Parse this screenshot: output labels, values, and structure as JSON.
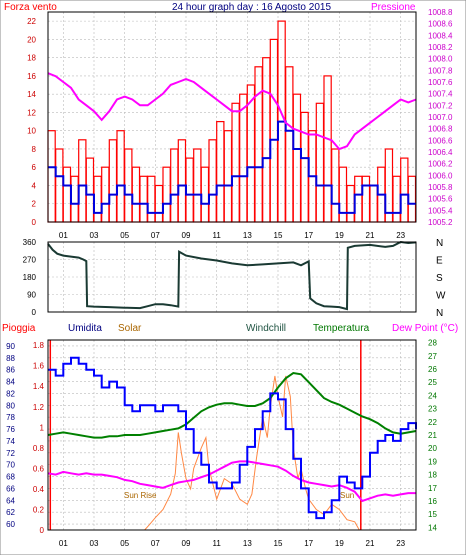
{
  "title": "24 hour graph day : 16 Agosto 2015",
  "colors": {
    "wind": "#ff0000",
    "gust": "#0000dd",
    "pressure": "#ff00ff",
    "direction": "#1a3a33",
    "humidity": "#0000ff",
    "solar": "#ff8844",
    "temperature": "#008000",
    "dewpoint": "#ff00ff",
    "rain": "#ff0000",
    "grid": "#bbbbbb",
    "text_blue": "#000080",
    "text_orange": "#aa6600",
    "text_green": "#007700",
    "text_dark": "#225544"
  },
  "chart_data": [
    {
      "type": "line",
      "name": "wind-pressure",
      "left_label": "Forza vento",
      "right_label": "Pressione",
      "x_ticks": [
        "01",
        "03",
        "05",
        "07",
        "09",
        "11",
        "13",
        "15",
        "17",
        "19",
        "21",
        "23"
      ],
      "y_left_ticks": [
        0,
        2,
        4,
        6,
        8,
        10,
        12,
        14,
        16,
        18,
        20,
        22
      ],
      "y_right_ticks": [
        1005.2,
        1005.4,
        1005.6,
        1005.8,
        1006,
        1006.2,
        1006.4,
        1006.6,
        1006.8,
        1007,
        1007.2,
        1007.4,
        1007.6,
        1007.8,
        1008,
        1008.2,
        1008.4,
        1008.6,
        1008.8
      ],
      "ylim_left": [
        0,
        23
      ],
      "ylim_right": [
        1005.2,
        1008.8
      ],
      "xlim": [
        0,
        24
      ],
      "series": [
        {
          "key": "wind",
          "x": [
            0,
            0.5,
            1,
            1.5,
            2,
            2.5,
            3,
            3.5,
            4,
            4.5,
            5,
            5.5,
            6,
            6.5,
            7,
            7.5,
            8,
            8.5,
            9,
            9.5,
            10,
            10.5,
            11,
            11.5,
            12,
            12.5,
            13,
            13.5,
            14,
            14.5,
            15,
            15.5,
            16,
            16.5,
            17,
            17.5,
            18,
            18.5,
            19,
            19.5,
            20,
            20.5,
            21,
            21.5,
            22,
            22.5,
            23,
            23.5,
            24
          ],
          "values": [
            10,
            8,
            6,
            5,
            9,
            7,
            5,
            6,
            9,
            10,
            8,
            6,
            5,
            5,
            4,
            6,
            8,
            9,
            7,
            8,
            6,
            9,
            11,
            10,
            13,
            14,
            15,
            17,
            18,
            20,
            22,
            17,
            14,
            12,
            10,
            13,
            16,
            8,
            6,
            4,
            5,
            5,
            4,
            6,
            8,
            5,
            7,
            5,
            6
          ]
        },
        {
          "key": "gust",
          "x": [
            0,
            0.5,
            1,
            1.5,
            2,
            2.5,
            3,
            3.5,
            4,
            4.5,
            5,
            5.5,
            6,
            6.5,
            7,
            7.5,
            8,
            8.5,
            9,
            9.5,
            10,
            10.5,
            11,
            11.5,
            12,
            12.5,
            13,
            13.5,
            14,
            14.5,
            15,
            15.5,
            16,
            16.5,
            17,
            17.5,
            18,
            18.5,
            19,
            19.5,
            20,
            20.5,
            21,
            21.5,
            22,
            22.5,
            23,
            23.5,
            24
          ],
          "values": [
            6,
            5,
            4,
            2,
            4,
            3,
            1,
            2,
            3,
            4,
            3,
            2,
            2,
            1,
            1,
            2,
            3,
            4,
            3,
            3,
            2,
            3,
            4,
            4,
            5,
            5,
            6,
            6,
            7,
            9,
            11,
            10,
            8,
            7,
            5,
            4,
            4,
            2,
            1,
            1,
            3,
            4,
            4,
            3,
            1,
            1,
            3,
            2,
            2
          ]
        },
        {
          "key": "pressure",
          "x": [
            0,
            0.5,
            1,
            1.5,
            2,
            2.5,
            3,
            3.5,
            4,
            4.5,
            5,
            5.5,
            6,
            6.5,
            7,
            7.5,
            8,
            8.5,
            9,
            9.5,
            10,
            10.5,
            11,
            11.5,
            12,
            12.5,
            13,
            13.5,
            14,
            14.5,
            15,
            15.5,
            16,
            16.5,
            17,
            17.5,
            18,
            18.5,
            19,
            19.5,
            20,
            20.5,
            21,
            21.5,
            22,
            22.5,
            23,
            23.5,
            24
          ],
          "values": [
            1007.75,
            1007.7,
            1007.6,
            1007.5,
            1007.3,
            1007.2,
            1007.1,
            1006.95,
            1007.1,
            1007.3,
            1007.35,
            1007.3,
            1007.2,
            1007.2,
            1007.3,
            1007.4,
            1007.55,
            1007.6,
            1007.65,
            1007.6,
            1007.5,
            1007.4,
            1007.3,
            1007.2,
            1007.1,
            1007.1,
            1007.2,
            1007.35,
            1007.45,
            1007.4,
            1007.2,
            1006.9,
            1006.8,
            1006.75,
            1006.7,
            1006.7,
            1006.65,
            1006.6,
            1006.45,
            1006.5,
            1006.7,
            1006.8,
            1006.9,
            1007.0,
            1007.1,
            1007.2,
            1007.3,
            1007.25,
            1007.3
          ]
        }
      ]
    },
    {
      "type": "line",
      "name": "wind-direction",
      "y_ticks": [
        0,
        90,
        180,
        270,
        360
      ],
      "dir_labels": [
        "N",
        "W",
        "S",
        "E",
        "N"
      ],
      "ylim": [
        0,
        360
      ],
      "xlim": [
        0,
        24
      ],
      "series": [
        {
          "key": "direction",
          "x": [
            0,
            0.3,
            0.6,
            1,
            1.5,
            2,
            2.3,
            2.5,
            2.55,
            3,
            4,
            5,
            6,
            6.5,
            7,
            7.5,
            8,
            8.5,
            8.55,
            9,
            10,
            11,
            12,
            13,
            14,
            15,
            16,
            16.5,
            17,
            17.1,
            17.5,
            18,
            18.5,
            19,
            19.5,
            19.55,
            20,
            21,
            22,
            22.5,
            23,
            23.5,
            24
          ],
          "values": [
            350,
            320,
            300,
            290,
            285,
            280,
            270,
            262,
            30,
            28,
            25,
            22,
            20,
            30,
            40,
            40,
            35,
            28,
            310,
            290,
            275,
            265,
            250,
            240,
            245,
            250,
            255,
            240,
            260,
            70,
            45,
            30,
            28,
            25,
            15,
            330,
            340,
            345,
            335,
            340,
            360,
            355,
            358
          ]
        }
      ]
    },
    {
      "type": "line",
      "name": "humidity-temp",
      "labels": {
        "rain": "Pioggia",
        "humidity": "Umidita",
        "solar": "Solar",
        "windchill": "Windchill",
        "temperature": "Temperatura",
        "dewpoint": "Dew Point (°C)"
      },
      "annotations": [
        "Sun Rise",
        "Sun"
      ],
      "y_left_ticks": [
        60,
        62,
        64,
        66,
        68,
        70,
        72,
        74,
        76,
        78,
        80,
        82,
        84,
        86,
        88,
        90
      ],
      "ylim_left": [
        59,
        91
      ],
      "y_rain_ticks": [
        0,
        0.2,
        0.4,
        0.6,
        0.8,
        1,
        1.2,
        1.4,
        1.6,
        1.8
      ],
      "ylim_rain": [
        0,
        1.85
      ],
      "y_right_ticks": [
        14,
        15,
        16,
        17,
        18,
        19,
        20,
        21,
        22,
        23,
        24,
        25,
        26,
        27,
        28
      ],
      "ylim_right": [
        13.8,
        28.2
      ],
      "xlim": [
        0,
        24
      ],
      "series": [
        {
          "key": "humidity",
          "x": [
            0,
            0.5,
            1,
            1.5,
            2,
            2.5,
            3,
            3.5,
            4,
            4.5,
            5,
            5.5,
            6,
            6.5,
            7,
            7.5,
            8,
            8.5,
            9,
            9.5,
            10,
            10.5,
            11,
            11.5,
            12,
            12.5,
            13,
            13.5,
            14,
            14.5,
            15,
            15.5,
            16,
            16.5,
            17,
            17.5,
            18,
            18.5,
            19,
            19.5,
            20,
            20.5,
            21,
            21.5,
            22,
            22.5,
            23,
            23.5,
            24
          ],
          "values": [
            86,
            85,
            87,
            88,
            87,
            86,
            85,
            83,
            84,
            83,
            80,
            79,
            80,
            80,
            79,
            80,
            80,
            79,
            76,
            72,
            70,
            67,
            66,
            66,
            67,
            70,
            73,
            76,
            79,
            82,
            81,
            76,
            71,
            66,
            62,
            61,
            62,
            64,
            68,
            67,
            66,
            68,
            72,
            74,
            75,
            74,
            76,
            77,
            76
          ]
        },
        {
          "key": "temperature",
          "x": [
            0,
            0.5,
            1,
            1.5,
            2,
            2.5,
            3,
            3.5,
            4,
            4.5,
            5,
            5.5,
            6,
            6.5,
            7,
            7.5,
            8,
            8.5,
            9,
            9.5,
            10,
            10.5,
            11,
            11.5,
            12,
            12.5,
            13,
            13.5,
            14,
            14.5,
            15,
            15.5,
            16,
            16.5,
            17,
            17.5,
            18,
            18.5,
            19,
            19.5,
            20,
            20.5,
            21,
            21.5,
            22,
            22.5,
            23,
            23.5,
            24
          ],
          "values": [
            21,
            21.1,
            21.2,
            21.1,
            21,
            20.9,
            20.8,
            20.8,
            20.9,
            20.9,
            21,
            21,
            21,
            21.1,
            21.2,
            21.3,
            21.4,
            21.5,
            21.8,
            22.3,
            22.8,
            23.1,
            23.3,
            23.4,
            23.4,
            23.3,
            23.2,
            23.2,
            23.4,
            23.8,
            24.6,
            25.3,
            25.7,
            25.6,
            25.0,
            24.4,
            23.8,
            23.5,
            23.3,
            23.0,
            22.7,
            22.4,
            22.2,
            21.9,
            21.5,
            21.2,
            21.1,
            21.2,
            21.3
          ]
        },
        {
          "key": "dewpoint",
          "x": [
            0,
            0.5,
            1,
            1.5,
            2,
            2.5,
            3,
            3.5,
            4,
            4.5,
            5,
            5.5,
            6,
            6.5,
            7,
            7.5,
            8,
            8.5,
            9,
            9.5,
            10,
            10.5,
            11,
            11.5,
            12,
            12.5,
            13,
            13.5,
            14,
            14.5,
            15,
            15.5,
            16,
            16.5,
            17,
            17.5,
            18,
            18.5,
            19,
            19.5,
            20,
            20.5,
            21,
            21.5,
            22,
            22.5,
            23,
            23.5,
            24
          ],
          "values": [
            18.1,
            18,
            18.2,
            18.1,
            18,
            18.1,
            18,
            18,
            17.9,
            17.8,
            17.6,
            17.5,
            17.3,
            17.2,
            17.1,
            17.0,
            17.2,
            17.4,
            17.5,
            17.6,
            17.8,
            18.0,
            18.3,
            18.6,
            18.9,
            19.0,
            19.0,
            18.9,
            18.8,
            18.7,
            18.6,
            18.3,
            17.9,
            17.6,
            17.4,
            17.3,
            17.2,
            17.1,
            17.2,
            17.0,
            16.7,
            16.0,
            16.2,
            16.4,
            16.5,
            16.4,
            16.5,
            16.6,
            16.6
          ]
        },
        {
          "key": "solar",
          "x": [
            6.3,
            6.6,
            7,
            7.5,
            8,
            8.3,
            8.5,
            8.7,
            9,
            9.3,
            9.5,
            10,
            10.3,
            10.5,
            11,
            11.5,
            12,
            12.5,
            13,
            13.3,
            13.6,
            14,
            14.3,
            14.5,
            14.8,
            15,
            15.3,
            15.5,
            15.8,
            16,
            16.3,
            16.5,
            16.8,
            17,
            17.5,
            18,
            18.5,
            19,
            19.5,
            20,
            20.3
          ],
          "values": [
            0,
            0.05,
            0.12,
            0.2,
            0.35,
            0.55,
            0.95,
            0.75,
            0.5,
            0.4,
            0.6,
            0.8,
            0.9,
            0.6,
            0.3,
            0.5,
            0.45,
            0.3,
            0.25,
            0.35,
            0.7,
            1.1,
            0.9,
            1.2,
            1.5,
            1.3,
            1.1,
            1.5,
            1.3,
            0.8,
            0.5,
            0.6,
            0.4,
            0.3,
            0.2,
            0.15,
            0.25,
            0.2,
            0.1,
            0.08,
            0
          ]
        }
      ]
    }
  ]
}
